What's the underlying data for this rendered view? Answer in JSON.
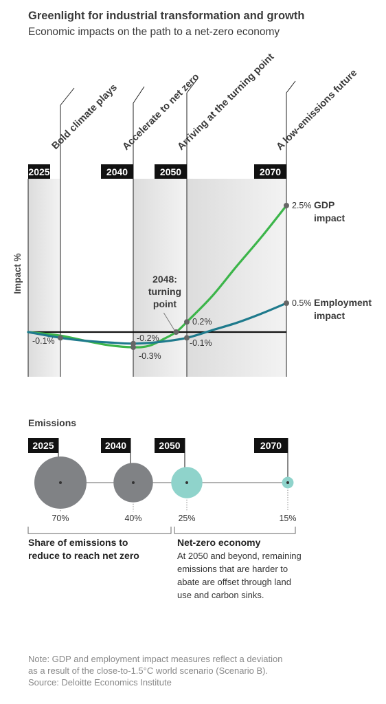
{
  "header": {
    "title": "Greenlight for industrial transformation and growth",
    "subtitle": "Economic impacts on the path to a net-zero economy"
  },
  "chart_data": [
    {
      "type": "line",
      "title": "",
      "ylabel": "Impact %",
      "phases": [
        {
          "year": "2025",
          "label": "Bold climate plays"
        },
        {
          "year": "2040",
          "label": "Accelerate to net zero"
        },
        {
          "year": "2050",
          "label": "Arriving at the turning point"
        },
        {
          "year": "2070",
          "label": "A low-emissions future"
        }
      ],
      "x": [
        2025,
        2040,
        2050,
        2070
      ],
      "xlim": [
        2018,
        2070
      ],
      "ylim": [
        -0.9,
        3.2
      ],
      "series": [
        {
          "name": "GDP impact",
          "color": "#3cb54a",
          "curve": [
            [
              2018,
              0.0
            ],
            [
              2025,
              -0.07
            ],
            [
              2030,
              -0.17
            ],
            [
              2035,
              -0.26
            ],
            [
              2040,
              -0.3
            ],
            [
              2043,
              -0.27
            ],
            [
              2046,
              -0.12
            ],
            [
              2048,
              0.0
            ],
            [
              2050,
              0.2
            ],
            [
              2055,
              0.7
            ],
            [
              2060,
              1.3
            ],
            [
              2065,
              1.88
            ],
            [
              2070,
              2.5
            ]
          ],
          "points": [
            {
              "x": 2040,
              "y": -0.3,
              "label": "-0.3%"
            },
            {
              "x": 2050,
              "y": 0.2,
              "label": "0.2%"
            },
            {
              "x": 2070,
              "y": 2.5,
              "label": "2.5%"
            }
          ],
          "end_label": [
            "GDP",
            "impact"
          ]
        },
        {
          "name": "Employment impact",
          "color": "#1e7a8c",
          "curve": [
            [
              2018,
              0.0
            ],
            [
              2025,
              -0.1
            ],
            [
              2030,
              -0.15
            ],
            [
              2035,
              -0.18
            ],
            [
              2040,
              -0.2
            ],
            [
              2045,
              -0.17
            ],
            [
              2050,
              -0.1
            ],
            [
              2055,
              0.03
            ],
            [
              2060,
              0.16
            ],
            [
              2065,
              0.32
            ],
            [
              2070,
              0.5
            ]
          ],
          "points": [
            {
              "x": 2025,
              "y": -0.1,
              "label": "-0.1%"
            },
            {
              "x": 2040,
              "y": -0.2,
              "label": "-0.2%"
            },
            {
              "x": 2050,
              "y": -0.1,
              "label": "-0.1%"
            },
            {
              "x": 2070,
              "y": 0.5,
              "label": "0.5%"
            }
          ],
          "end_label": [
            "Employment",
            "impact"
          ]
        }
      ],
      "annotation": {
        "year": 2048,
        "y": 0.0,
        "lines": [
          "2048:",
          "turning",
          "point"
        ]
      }
    },
    {
      "type": "bubble",
      "title": "Emissions",
      "series": [
        {
          "name": "Emissions",
          "x": [
            "2025",
            "2040",
            "2050",
            "2070"
          ],
          "values": [
            70,
            40,
            25,
            15
          ],
          "labels": [
            "70%",
            "40%",
            "25%",
            "15%"
          ],
          "colors": [
            "#808285",
            "#808285",
            "#8fd3cb",
            "#8fd3cb"
          ]
        }
      ],
      "groups": [
        {
          "title": [
            "Share of emissions to",
            "reduce to reach net zero"
          ],
          "text": []
        },
        {
          "title": [
            "Net-zero economy"
          ],
          "text": [
            "At 2050 and beyond, remaining",
            "emissions that are harder to",
            "abate are offset through land",
            "use and carbon sinks."
          ]
        }
      ]
    }
  ],
  "note": [
    "Note: GDP and employment impact measures reflect a deviation",
    "as a result of the close-to-1.5°C world scenario (Scenario B).",
    "Source: Deloitte Economics Institute"
  ]
}
